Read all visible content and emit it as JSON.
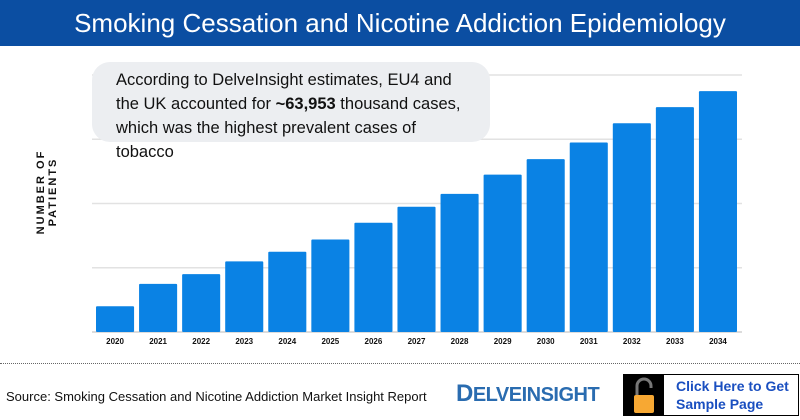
{
  "header": {
    "title": "Smoking Cessation and Nicotine Addiction Epidemiology"
  },
  "colors": {
    "header": "#0b4ea2",
    "bar": "#0a82e4",
    "cta_text": "#1a4fc0",
    "lock": "#f7a833"
  },
  "callout": {
    "pre": "According to DelveInsight estimates, EU4 and the UK accounted for ",
    "bold": "~63,953",
    "post": " thousand cases, which was the highest prevalent cases of tobacco"
  },
  "chart_data": {
    "type": "bar",
    "title": "",
    "xlabel": "",
    "ylabel": "NUMBER OF PATIENTS",
    "categories": [
      "2020",
      "2021",
      "2022",
      "2023",
      "2024",
      "2025",
      "2026",
      "2027",
      "2028",
      "2029",
      "2030",
      "2031",
      "2032",
      "2033",
      "2034"
    ],
    "values": [
      0.4,
      0.75,
      0.9,
      1.1,
      1.25,
      1.44,
      1.7,
      1.95,
      2.15,
      2.45,
      2.69,
      2.95,
      3.25,
      3.5,
      3.75
    ],
    "ylim": [
      0,
      4
    ],
    "grid": true,
    "y_tick_labels": false
  },
  "footer": {
    "source": "Source: Smoking Cessation and Nicotine Addiction Market Insight Report",
    "logo": "DELVEINSIGHT",
    "cta": "Click Here to Get Sample Page",
    "cta_icon": "unlocked-padlock-icon"
  }
}
